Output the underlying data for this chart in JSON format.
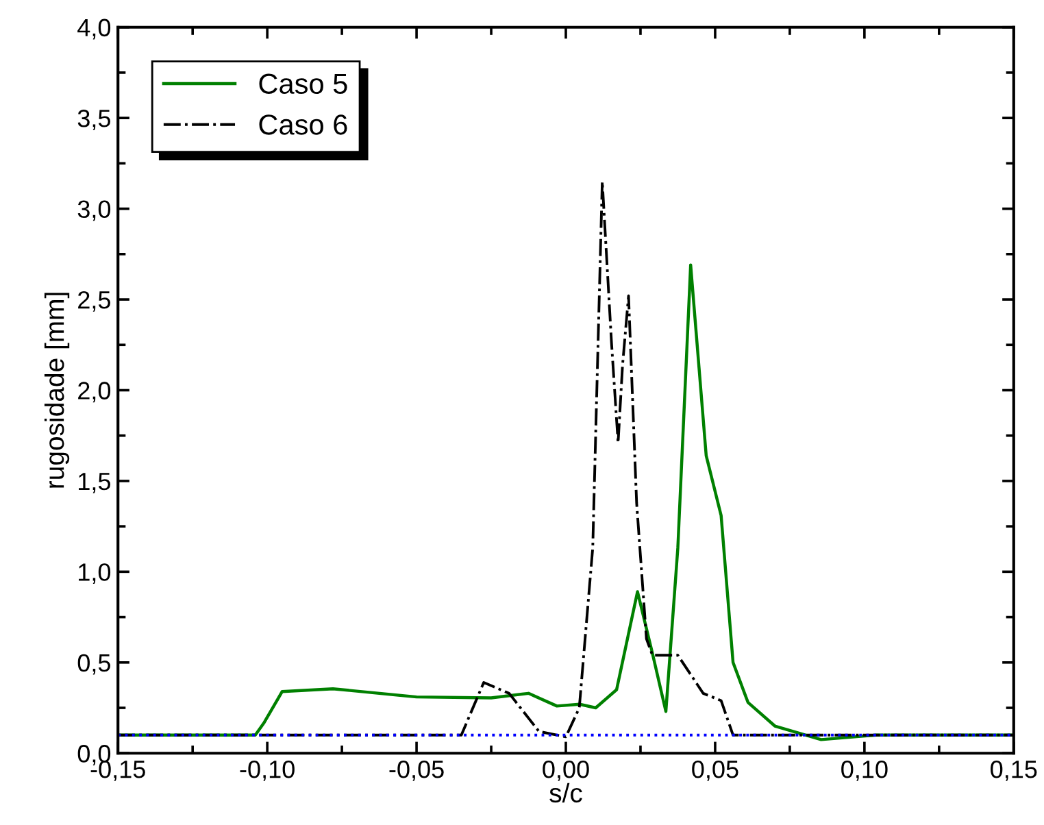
{
  "chart_data": {
    "type": "line",
    "xlabel": "s/c",
    "ylabel": "rugosidade [mm]",
    "xlim": [
      -0.15,
      0.15
    ],
    "ylim": [
      0,
      4.0
    ],
    "xticks": [
      {
        "value": -0.15,
        "label": "-0,15"
      },
      {
        "value": -0.1,
        "label": "-0,10"
      },
      {
        "value": -0.05,
        "label": "-0,05"
      },
      {
        "value": 0,
        "label": "0,00"
      },
      {
        "value": 0.05,
        "label": "0,05"
      },
      {
        "value": 0.1,
        "label": "0,10"
      },
      {
        "value": 0.15,
        "label": "0,15"
      }
    ],
    "yticks": [
      {
        "value": 0,
        "label": "0,0"
      },
      {
        "value": 0.5,
        "label": "0,5"
      },
      {
        "value": 1.0,
        "label": "1,0"
      },
      {
        "value": 1.5,
        "label": "1,5"
      },
      {
        "value": 2.0,
        "label": "2,0"
      },
      {
        "value": 2.5,
        "label": "2,5"
      },
      {
        "value": 3.0,
        "label": "3,0"
      },
      {
        "value": 3.5,
        "label": "3,5"
      },
      {
        "value": 4.0,
        "label": "4,0"
      }
    ],
    "grid": false,
    "legend": "top left",
    "series": [
      {
        "name": "Caso 5",
        "color": "#008000",
        "line_style": "solid",
        "x": [
          -0.15,
          -0.104,
          -0.101,
          -0.095,
          -0.078,
          -0.05,
          -0.025,
          -0.0125,
          -0.003,
          0.0046,
          0.01,
          0.017,
          0.024,
          0.029,
          0.0335,
          0.0375,
          0.0418,
          0.047,
          0.052,
          0.056,
          0.061,
          0.07,
          0.0855,
          0.104,
          0.15
        ],
        "values": [
          0.1,
          0.1,
          0.17,
          0.34,
          0.355,
          0.31,
          0.305,
          0.33,
          0.26,
          0.27,
          0.25,
          0.35,
          0.89,
          0.55,
          0.23,
          1.13,
          2.69,
          1.64,
          1.31,
          0.5,
          0.28,
          0.15,
          0.075,
          0.1,
          0.1
        ]
      },
      {
        "name": "Caso 6",
        "color": "#000000",
        "line_style": "dashdot",
        "x": [
          -0.15,
          -0.035,
          -0.0275,
          -0.019,
          -0.009,
          0.0,
          0.0045,
          0.009,
          0.0122,
          0.0153,
          0.0175,
          0.019,
          0.021,
          0.0237,
          0.027,
          0.029,
          0.0375,
          0.046,
          0.052,
          0.056,
          0.15
        ],
        "values": [
          0.1,
          0.1,
          0.39,
          0.33,
          0.12,
          0.09,
          0.25,
          1.13,
          3.15,
          2.26,
          1.71,
          2.14,
          2.52,
          1.38,
          0.63,
          0.54,
          0.54,
          0.33,
          0.29,
          0.1,
          0.1
        ]
      },
      {
        "color": "#0000ff",
        "line_style": "dotted",
        "x": [
          -0.15,
          0.15
        ],
        "values": [
          0.1,
          0.1
        ]
      }
    ]
  }
}
